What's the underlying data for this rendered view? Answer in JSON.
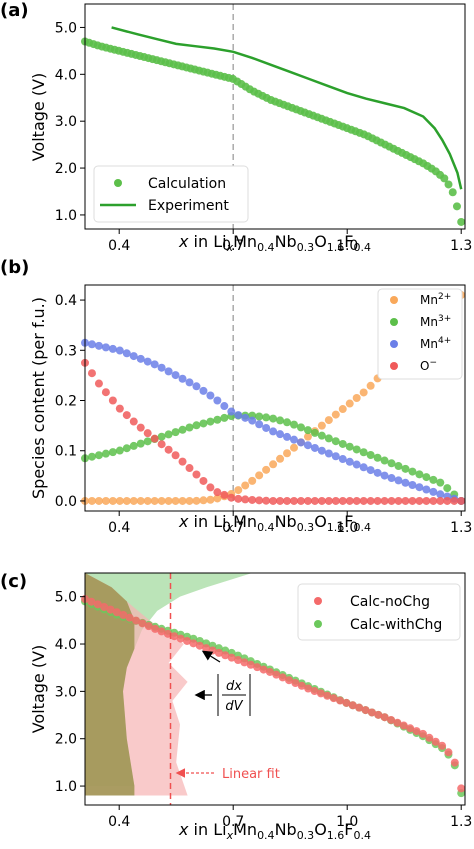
{
  "colors": {
    "calc_green": "#5cbf4a",
    "exp_green": "#2ca02c",
    "mn2": "#f9a85a",
    "mn3": "#5cbf4a",
    "mn4": "#6b7fe8",
    "o": "#f05a5a",
    "nochg": "#f46a6a",
    "withchg": "#6cc85c",
    "olive": "#9c9450",
    "green_fill": "#9ed99a",
    "red_fill": "#f7b3b3",
    "dash_gray": "#aaaaaa",
    "fit_red": "#f05050"
  },
  "chart_data": [
    {
      "type": "scatter",
      "panel_label": "(a)",
      "ylabel": "Voltage (V)",
      "xlabel_parts": [
        "x",
        " in Li",
        "x",
        "Mn",
        "0.4",
        "Nb",
        "0.3",
        "O",
        "1.6",
        "F",
        "0.4"
      ],
      "xlim": [
        0.31,
        1.31
      ],
      "ylim": [
        0.7,
        5.5
      ],
      "xticks": [
        0.4,
        0.7,
        1.0,
        1.3
      ],
      "xtick_labels": [
        "0.4",
        "0.7",
        "1.0",
        "1.3"
      ],
      "yticks": [
        1.0,
        2.0,
        3.0,
        4.0,
        5.0
      ],
      "ytick_labels": [
        "1.0",
        "2.0",
        "3.0",
        "4.0",
        "5.0"
      ],
      "vline_x": 0.7,
      "legend": [
        "Calculation",
        "Experiment"
      ],
      "legend_position": "lower-left",
      "series": [
        {
          "name": "Calculation",
          "style": "scatter",
          "x": [
            0.31,
            0.35,
            0.4,
            0.45,
            0.5,
            0.55,
            0.6,
            0.65,
            0.7,
            0.75,
            0.8,
            0.85,
            0.9,
            0.95,
            1.0,
            1.05,
            1.1,
            1.15,
            1.2,
            1.23,
            1.26,
            1.28,
            1.29,
            1.3
          ],
          "y": [
            4.7,
            4.6,
            4.5,
            4.4,
            4.3,
            4.2,
            4.1,
            4.0,
            3.9,
            3.65,
            3.45,
            3.3,
            3.15,
            3.0,
            2.85,
            2.7,
            2.5,
            2.3,
            2.1,
            1.95,
            1.75,
            1.45,
            1.15,
            0.85
          ]
        },
        {
          "name": "Experiment",
          "style": "line",
          "x": [
            0.38,
            0.45,
            0.5,
            0.55,
            0.6,
            0.65,
            0.7,
            0.75,
            0.8,
            0.85,
            0.9,
            0.95,
            1.0,
            1.05,
            1.1,
            1.15,
            1.2,
            1.23,
            1.25,
            1.27,
            1.29,
            1.3
          ],
          "y": [
            5.0,
            4.85,
            4.75,
            4.65,
            4.6,
            4.55,
            4.48,
            4.35,
            4.2,
            4.05,
            3.9,
            3.75,
            3.6,
            3.48,
            3.38,
            3.28,
            3.1,
            2.85,
            2.6,
            2.3,
            1.9,
            1.55
          ]
        }
      ]
    },
    {
      "type": "scatter",
      "panel_label": "(b)",
      "ylabel": "Species content (per f.u.)",
      "xlabel_parts": [
        "x",
        " in Li",
        "x",
        "Mn",
        "0.4",
        "Nb",
        "0.3",
        "O",
        "1.6",
        "F",
        "0.4"
      ],
      "xlim": [
        0.31,
        1.31
      ],
      "ylim": [
        -0.02,
        0.43
      ],
      "xticks": [
        0.4,
        0.7,
        1.0,
        1.3
      ],
      "xtick_labels": [
        "0.4",
        "0.7",
        "1.0",
        "1.3"
      ],
      "yticks": [
        0.0,
        0.1,
        0.2,
        0.3,
        0.4
      ],
      "ytick_labels": [
        "0.0",
        "0.1",
        "0.2",
        "0.3",
        "0.4"
      ],
      "vline_x": 0.7,
      "legend_position": "top-right",
      "series": [
        {
          "name": "Mn2+",
          "label_base": "Mn",
          "label_sup": "2+",
          "x": [
            0.31,
            0.4,
            0.5,
            0.6,
            0.65,
            0.7,
            0.75,
            0.8,
            0.85,
            0.9,
            0.95,
            1.0,
            1.05,
            1.1,
            1.15,
            1.2,
            1.25,
            1.3
          ],
          "y": [
            0.0,
            0.0,
            0.0,
            0.0,
            0.003,
            0.015,
            0.04,
            0.07,
            0.1,
            0.13,
            0.16,
            0.19,
            0.22,
            0.26,
            0.29,
            0.33,
            0.37,
            0.41
          ]
        },
        {
          "name": "Mn3+",
          "label_base": "Mn",
          "label_sup": "3+",
          "x": [
            0.31,
            0.4,
            0.5,
            0.6,
            0.65,
            0.7,
            0.75,
            0.8,
            0.85,
            0.9,
            0.95,
            1.0,
            1.05,
            1.1,
            1.15,
            1.2,
            1.25,
            1.3
          ],
          "y": [
            0.085,
            0.1,
            0.125,
            0.15,
            0.16,
            0.17,
            0.17,
            0.165,
            0.155,
            0.14,
            0.125,
            0.11,
            0.095,
            0.08,
            0.065,
            0.05,
            0.035,
            0.0
          ]
        },
        {
          "name": "Mn4+",
          "label_base": "Mn",
          "label_sup": "4+",
          "x": [
            0.31,
            0.4,
            0.5,
            0.6,
            0.65,
            0.7,
            0.75,
            0.8,
            0.85,
            0.9,
            0.95,
            1.0,
            1.05,
            1.1,
            1.15,
            1.2,
            1.25,
            1.3
          ],
          "y": [
            0.315,
            0.3,
            0.27,
            0.23,
            0.205,
            0.175,
            0.16,
            0.14,
            0.125,
            0.11,
            0.095,
            0.08,
            0.065,
            0.05,
            0.037,
            0.025,
            0.012,
            0.0
          ]
        },
        {
          "name": "O-",
          "label_base": "O",
          "label_sup": "−",
          "x": [
            0.31,
            0.35,
            0.4,
            0.45,
            0.5,
            0.55,
            0.6,
            0.65,
            0.7,
            0.75,
            0.8,
            0.9,
            1.0,
            1.1,
            1.2,
            1.3
          ],
          "y": [
            0.275,
            0.23,
            0.185,
            0.15,
            0.12,
            0.09,
            0.055,
            0.02,
            0.005,
            0.002,
            0.0,
            0.0,
            0.0,
            0.0,
            0.0,
            0.0
          ]
        }
      ]
    },
    {
      "type": "scatter",
      "panel_label": "(c)",
      "ylabel": "Voltage (V)",
      "xlabel_parts": [
        "x",
        " in Li",
        "x",
        "Mn",
        "0.4",
        "Nb",
        "0.3",
        "O",
        "1.6",
        "F",
        "0.4"
      ],
      "xlim": [
        0.31,
        1.31
      ],
      "ylim": [
        0.6,
        5.5
      ],
      "xticks": [
        0.4,
        0.7,
        1.0,
        1.3
      ],
      "xtick_labels": [
        "0.4",
        "0.7",
        "1.0",
        "1.3"
      ],
      "yticks": [
        1.0,
        2.0,
        3.0,
        4.0,
        5.0
      ],
      "ytick_labels": [
        "1.0",
        "2.0",
        "3.0",
        "4.0",
        "5.0"
      ],
      "legend": [
        "Calc-noChg",
        "Calc-withChg"
      ],
      "legend_position": "top-right",
      "fit_line_x": 0.535,
      "annotation_dxdv": "|dx/dV|",
      "annotation_dxdv_num": "dx",
      "annotation_dxdv_den": "dV",
      "annotation_fit": "Linear fit",
      "series": [
        {
          "name": "Calc-noChg",
          "x": [
            0.31,
            0.4,
            0.5,
            0.6,
            0.7,
            0.8,
            0.9,
            1.0,
            1.1,
            1.2,
            1.25,
            1.28,
            1.3
          ],
          "y": [
            4.95,
            4.65,
            4.3,
            4.0,
            3.7,
            3.4,
            3.05,
            2.75,
            2.45,
            2.1,
            1.85,
            1.6,
            0.95
          ]
        },
        {
          "name": "Calc-withChg",
          "x": [
            0.31,
            0.4,
            0.5,
            0.6,
            0.7,
            0.8,
            0.9,
            1.0,
            1.1,
            1.2,
            1.25,
            1.28,
            1.3
          ],
          "y": [
            4.9,
            4.6,
            4.35,
            4.1,
            3.8,
            3.45,
            3.1,
            2.75,
            2.45,
            2.05,
            1.8,
            1.55,
            0.85
          ]
        },
        {
          "name": "dxdV-withChg",
          "style": "area",
          "x_extent": [
            0.75,
            0.63,
            0.56,
            0.5,
            0.46,
            0.44,
            0.42,
            0.41,
            0.42,
            0.44
          ],
          "y": [
            5.5,
            5.2,
            5.0,
            4.7,
            4.3,
            3.9,
            3.5,
            3.0,
            2.0,
            1.0
          ]
        },
        {
          "name": "dxdV-noChg",
          "style": "area",
          "x_extent": [
            0.31,
            0.38,
            0.42,
            0.48,
            0.57,
            0.53,
            0.58,
            0.54,
            0.56,
            0.55,
            0.58
          ],
          "y": [
            5.5,
            5.2,
            4.9,
            4.5,
            4.0,
            3.6,
            3.2,
            2.8,
            2.3,
            1.5,
            0.8
          ]
        }
      ]
    }
  ]
}
